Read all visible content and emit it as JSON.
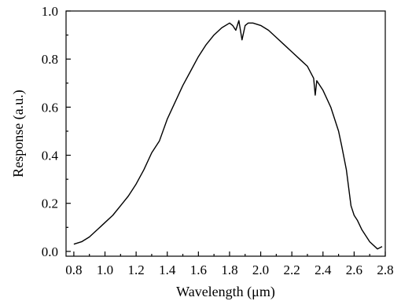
{
  "chart_data": {
    "type": "line",
    "xlabel": "Wavelength (μm)",
    "ylabel": "Response (a.u.)",
    "xlim": [
      0.75,
      2.8
    ],
    "ylim": [
      -0.02,
      1.0
    ],
    "xticks": [
      0.8,
      1.0,
      1.2,
      1.4,
      1.6,
      1.8,
      2.0,
      2.2,
      2.4,
      2.6,
      2.8
    ],
    "xtick_labels": [
      "0.8",
      "1.0",
      "1.2",
      "1.4",
      "1.6",
      "1.8",
      "2.0",
      "2.2",
      "2.4",
      "2.6",
      "2.8"
    ],
    "yticks": [
      0.0,
      0.2,
      0.4,
      0.6,
      0.8,
      1.0
    ],
    "ytick_labels": [
      "0.0",
      "0.2",
      "0.4",
      "0.6",
      "0.8",
      "1.0"
    ],
    "grid": false,
    "series": [
      {
        "x": [
          0.8,
          0.85,
          0.9,
          0.95,
          1.0,
          1.05,
          1.1,
          1.15,
          1.2,
          1.25,
          1.3,
          1.35,
          1.4,
          1.45,
          1.5,
          1.55,
          1.6,
          1.65,
          1.7,
          1.75,
          1.8,
          1.82,
          1.84,
          1.86,
          1.88,
          1.9,
          1.92,
          1.95,
          2.0,
          2.05,
          2.1,
          2.15,
          2.2,
          2.25,
          2.3,
          2.34,
          2.35,
          2.36,
          2.4,
          2.45,
          2.5,
          2.52,
          2.55,
          2.58,
          2.6,
          2.62,
          2.65,
          2.7,
          2.75,
          2.78
        ],
        "y": [
          0.03,
          0.04,
          0.06,
          0.09,
          0.12,
          0.15,
          0.19,
          0.23,
          0.28,
          0.34,
          0.41,
          0.46,
          0.55,
          0.62,
          0.69,
          0.75,
          0.81,
          0.86,
          0.9,
          0.93,
          0.95,
          0.94,
          0.92,
          0.96,
          0.88,
          0.94,
          0.95,
          0.95,
          0.94,
          0.92,
          0.89,
          0.86,
          0.83,
          0.8,
          0.77,
          0.72,
          0.65,
          0.71,
          0.67,
          0.6,
          0.5,
          0.44,
          0.34,
          0.19,
          0.15,
          0.13,
          0.09,
          0.04,
          0.01,
          0.02
        ]
      }
    ]
  }
}
